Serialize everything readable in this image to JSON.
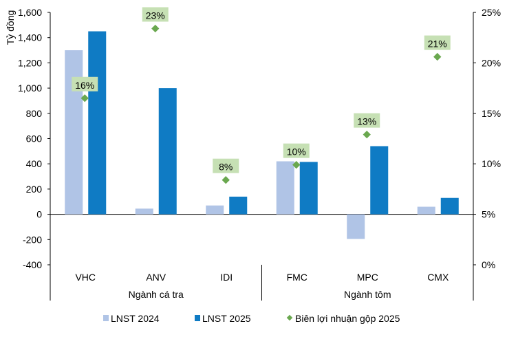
{
  "chart_data": {
    "type": "bar",
    "ylabel": "Tỷ đồng",
    "ylim": [
      -400,
      1600
    ],
    "yticks": [
      "-400",
      "-200",
      "0",
      "200",
      "400",
      "600",
      "800",
      "1,000",
      "1,200",
      "1,400",
      "1,600"
    ],
    "y2lim": [
      0,
      25
    ],
    "y2ticks": [
      "0%",
      "5%",
      "10%",
      "15%",
      "20%",
      "25%"
    ],
    "categories": [
      "VHC",
      "ANV",
      "IDI",
      "FMC",
      "MPC",
      "CMX"
    ],
    "groups": [
      {
        "label": "Ngành cá tra",
        "categories": [
          "VHC",
          "ANV",
          "IDI"
        ]
      },
      {
        "label": "Ngành tôm",
        "categories": [
          "FMC",
          "MPC",
          "CMX"
        ]
      }
    ],
    "series": [
      {
        "name": "LNST 2024",
        "type": "bar",
        "color": "#b0c4e6",
        "values": [
          1300,
          45,
          70,
          420,
          -195,
          60
        ]
      },
      {
        "name": "LNST 2025",
        "type": "bar",
        "color": "#0f7bc4",
        "values": [
          1450,
          1000,
          140,
          415,
          540,
          130
        ]
      },
      {
        "name": "Biên lợi nhuận gộp 2025",
        "type": "scatter",
        "axis": "right",
        "color": "#6aa84f",
        "values": [
          16.5,
          23.4,
          8.4,
          9.9,
          12.9,
          20.6
        ],
        "labels": [
          "16%",
          "23%",
          "8%",
          "10%",
          "13%",
          "21%"
        ]
      }
    ],
    "legend": "bottom",
    "grid": false
  }
}
